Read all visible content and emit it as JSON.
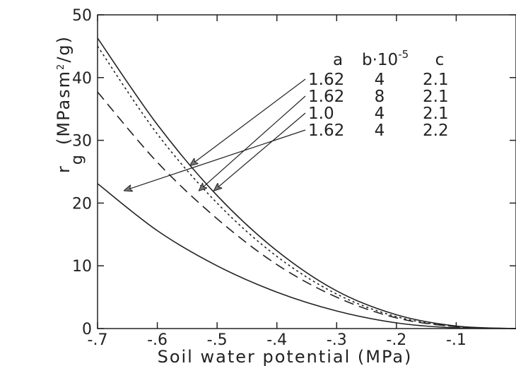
{
  "chart_data": {
    "type": "line",
    "xlabel": "Soil water potential (MPa)",
    "ylabel": "r_g (MPa s m^2/g)",
    "ylabel_main": "r",
    "ylabel_sub": "g",
    "ylabel_units_pre": "(MPasm",
    "ylabel_units_sup": "2",
    "ylabel_units_post": "/g)",
    "xlim": [
      -0.7,
      0.0
    ],
    "ylim": [
      0,
      50
    ],
    "x_ticks": [
      -0.7,
      -0.6,
      -0.5,
      -0.4,
      -0.3,
      -0.2,
      -0.1
    ],
    "x_tick_labels": [
      "-.7",
      "-.6",
      "-.5",
      "-.4",
      "-.3",
      "-.2",
      "-.1"
    ],
    "y_ticks": [
      0,
      10,
      20,
      30,
      40,
      50
    ],
    "y_tick_labels": [
      "0",
      "10",
      "20",
      "30",
      "40",
      "50"
    ],
    "legend_header": {
      "a": "a",
      "b_pre": "b·10",
      "b_sup": "-5",
      "c": "c"
    },
    "series": [
      {
        "a": "1.62",
        "b": "4",
        "c": "2.1",
        "style": "solid",
        "x": [
          -0.7,
          -0.6,
          -0.5,
          -0.4,
          -0.3,
          -0.2,
          -0.1,
          0.0
        ],
        "y": [
          46.3,
          32.5,
          21.2,
          12.4,
          6.0,
          2.2,
          0.4,
          0.0
        ],
        "arrow_target": [
          -0.545,
          26.0
        ]
      },
      {
        "a": "1.62",
        "b": "8",
        "c": "2.1",
        "style": "dotted",
        "x": [
          -0.7,
          -0.6,
          -0.5,
          -0.4,
          -0.3,
          -0.2,
          -0.1,
          0.0
        ],
        "y": [
          45.0,
          31.0,
          20.0,
          11.5,
          5.5,
          1.9,
          0.3,
          0.0
        ],
        "arrow_target": [
          -0.53,
          22.0
        ]
      },
      {
        "a": "1.0",
        "b": "4",
        "c": "2.1",
        "style": "dashed",
        "x": [
          -0.7,
          -0.6,
          -0.5,
          -0.4,
          -0.3,
          -0.2,
          -0.1,
          0.0
        ],
        "y": [
          37.7,
          26.5,
          17.5,
          10.2,
          5.0,
          1.7,
          0.3,
          0.0
        ],
        "arrow_target": [
          -0.505,
          22.0
        ]
      },
      {
        "a": "1.62",
        "b": "4",
        "c": "2.2",
        "style": "solid",
        "x": [
          -0.7,
          -0.6,
          -0.5,
          -0.4,
          -0.3,
          -0.2,
          -0.1,
          0.0
        ],
        "y": [
          23.1,
          15.6,
          10.0,
          5.8,
          2.8,
          0.9,
          0.1,
          0.0
        ],
        "arrow_target": [
          -0.655,
          22.0
        ]
      }
    ],
    "grid": false
  }
}
